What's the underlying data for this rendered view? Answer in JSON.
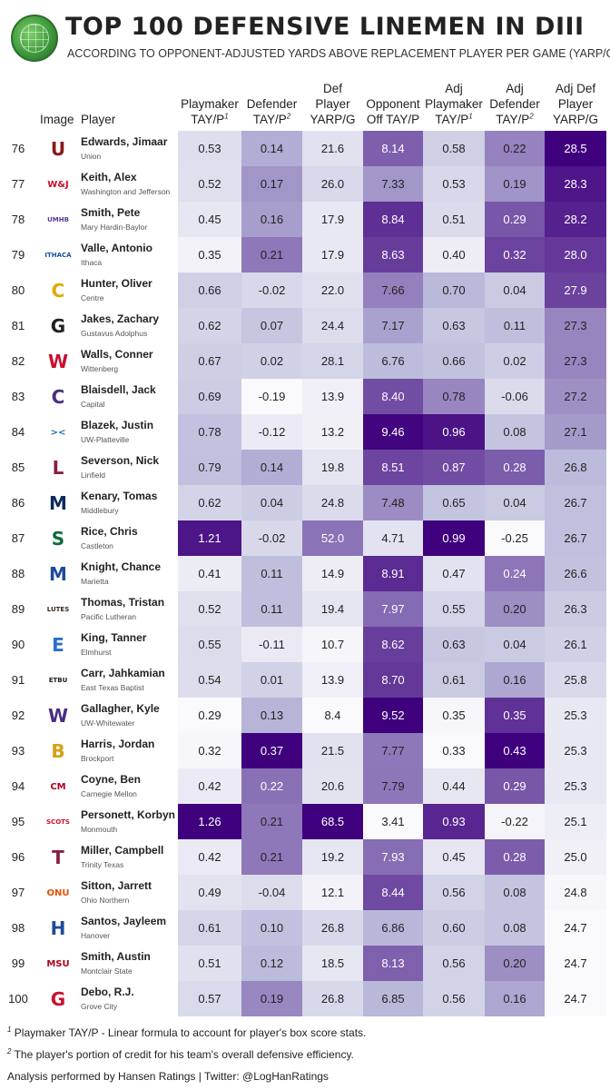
{
  "header": {
    "title": "TOP 100 DEFENSIVE LINEMEN IN DIII",
    "subtitle": "ACCORDING TO OPPONENT-ADJUSTED YARDS ABOVE REPLACEMENT PLAYER PER GAME (YARP/G)"
  },
  "columns": {
    "image": "Image",
    "player": "Player",
    "c1_l1": "Playmaker",
    "c1_l2": "TAY/P",
    "c1_sup": "1",
    "c2_l1": "Defender",
    "c2_l2": "TAY/P",
    "c2_sup": "2",
    "c3_l1": "Def",
    "c3_l2": "Player",
    "c3_l3": "YARP/G",
    "c4_l1": "Opponent",
    "c4_l2": "Off TAY/P",
    "c5_l1": "Adj",
    "c5_l2": "Playmaker",
    "c5_l3": "TAY/P",
    "c5_sup": "1",
    "c6_l1": "Adj",
    "c6_l2": "Defender",
    "c6_l3": "TAY/P",
    "c6_sup": "2",
    "c7_l1": "Adj Def",
    "c7_l2": "Player",
    "c7_l3": "YARP/G"
  },
  "rows": [
    {
      "rank": "76",
      "name": "Edwards, Jimaar",
      "team": "Union",
      "logo": "U",
      "logo_color": "#8a1a1a",
      "v": [
        "0.53",
        "0.14",
        "21.6",
        "8.14",
        "0.58",
        "0.22",
        "28.5"
      ]
    },
    {
      "rank": "77",
      "name": "Keith, Alex",
      "team": "Washington and Jefferson",
      "logo": "W&J",
      "logo_color": "#c8102e",
      "v": [
        "0.52",
        "0.17",
        "26.0",
        "7.33",
        "0.53",
        "0.19",
        "28.3"
      ]
    },
    {
      "rank": "78",
      "name": "Smith, Pete",
      "team": "Mary Hardin-Baylor",
      "logo": "UMHB",
      "logo_color": "#5b3a8e",
      "v": [
        "0.45",
        "0.16",
        "17.9",
        "8.84",
        "0.51",
        "0.29",
        "28.2"
      ]
    },
    {
      "rank": "79",
      "name": "Valle, Antonio",
      "team": "Ithaca",
      "logo": "ITHACA",
      "logo_color": "#1a4f9c",
      "v": [
        "0.35",
        "0.21",
        "17.9",
        "8.63",
        "0.40",
        "0.32",
        "28.0"
      ]
    },
    {
      "rank": "80",
      "name": "Hunter, Oliver",
      "team": "Centre",
      "logo": "C",
      "logo_color": "#e0a800",
      "v": [
        "0.66",
        "-0.02",
        "22.0",
        "7.66",
        "0.70",
        "0.04",
        "27.9"
      ]
    },
    {
      "rank": "81",
      "name": "Jakes, Zachary",
      "team": "Gustavus Adolphus",
      "logo": "G",
      "logo_color": "#222222",
      "v": [
        "0.62",
        "0.07",
        "24.4",
        "7.17",
        "0.63",
        "0.11",
        "27.3"
      ]
    },
    {
      "rank": "82",
      "name": "Walls, Conner",
      "team": "Wittenberg",
      "logo": "W",
      "logo_color": "#c8102e",
      "v": [
        "0.67",
        "0.02",
        "28.1",
        "6.76",
        "0.66",
        "0.02",
        "27.3"
      ]
    },
    {
      "rank": "83",
      "name": "Blaisdell, Jack",
      "team": "Capital",
      "logo": "C",
      "logo_color": "#4b2e83",
      "v": [
        "0.69",
        "-0.19",
        "13.9",
        "8.40",
        "0.78",
        "-0.06",
        "27.2"
      ]
    },
    {
      "rank": "84",
      "name": "Blazek, Justin",
      "team": "UW-Platteville",
      "logo": "><",
      "logo_color": "#1f6fb5",
      "v": [
        "0.78",
        "-0.12",
        "13.2",
        "9.46",
        "0.96",
        "0.08",
        "27.1"
      ]
    },
    {
      "rank": "85",
      "name": "Severson, Nick",
      "team": "Linfield",
      "logo": "L",
      "logo_color": "#8b1e3f",
      "v": [
        "0.79",
        "0.14",
        "19.8",
        "8.51",
        "0.87",
        "0.28",
        "26.8"
      ]
    },
    {
      "rank": "86",
      "name": "Kenary, Tomas",
      "team": "Middlebury",
      "logo": "M",
      "logo_color": "#0b2a5b",
      "v": [
        "0.62",
        "0.04",
        "24.8",
        "7.48",
        "0.65",
        "0.04",
        "26.7"
      ]
    },
    {
      "rank": "87",
      "name": "Rice, Chris",
      "team": "Castleton",
      "logo": "S",
      "logo_color": "#0f6b3a",
      "v": [
        "1.21",
        "-0.02",
        "52.0",
        "4.71",
        "0.99",
        "-0.25",
        "26.7"
      ]
    },
    {
      "rank": "88",
      "name": "Knight, Chance",
      "team": "Marietta",
      "logo": "M",
      "logo_color": "#1d4a9c",
      "v": [
        "0.41",
        "0.11",
        "14.9",
        "8.91",
        "0.47",
        "0.24",
        "26.6"
      ]
    },
    {
      "rank": "89",
      "name": "Thomas, Tristan",
      "team": "Pacific Lutheran",
      "logo": "LUTES",
      "logo_color": "#3c2a1e",
      "v": [
        "0.52",
        "0.11",
        "19.4",
        "7.97",
        "0.55",
        "0.20",
        "26.3"
      ]
    },
    {
      "rank": "90",
      "name": "King, Tanner",
      "team": "Elmhurst",
      "logo": "E",
      "logo_color": "#2a6fc9",
      "v": [
        "0.55",
        "-0.11",
        "10.7",
        "8.62",
        "0.63",
        "0.04",
        "26.1"
      ]
    },
    {
      "rank": "91",
      "name": "Carr, Jahkamian",
      "team": "East Texas Baptist",
      "logo": "ETBU",
      "logo_color": "#1a1a1a",
      "v": [
        "0.54",
        "0.01",
        "13.9",
        "8.70",
        "0.61",
        "0.16",
        "25.8"
      ]
    },
    {
      "rank": "92",
      "name": "Gallagher, Kyle",
      "team": "UW-Whitewater",
      "logo": "W",
      "logo_color": "#4b2e83",
      "v": [
        "0.29",
        "0.13",
        "8.4",
        "9.52",
        "0.35",
        "0.35",
        "25.3"
      ]
    },
    {
      "rank": "93",
      "name": "Harris, Jordan",
      "team": "Brockport",
      "logo": "B",
      "logo_color": "#d4a017",
      "v": [
        "0.32",
        "0.37",
        "21.5",
        "7.77",
        "0.33",
        "0.43",
        "25.3"
      ]
    },
    {
      "rank": "94",
      "name": "Coyne, Ben",
      "team": "Carnegie Mellon",
      "logo": "CM",
      "logo_color": "#b00020",
      "v": [
        "0.42",
        "0.22",
        "20.6",
        "7.79",
        "0.44",
        "0.29",
        "25.3"
      ]
    },
    {
      "rank": "95",
      "name": "Personett, Korbyn",
      "team": "Monmouth",
      "logo": "SCOTS",
      "logo_color": "#c8102e",
      "v": [
        "1.26",
        "0.21",
        "68.5",
        "3.41",
        "0.93",
        "-0.22",
        "25.1"
      ]
    },
    {
      "rank": "96",
      "name": "Miller, Campbell",
      "team": "Trinity Texas",
      "logo": "T",
      "logo_color": "#8b1e3f",
      "v": [
        "0.42",
        "0.21",
        "19.2",
        "7.93",
        "0.45",
        "0.28",
        "25.0"
      ]
    },
    {
      "rank": "97",
      "name": "Sitton, Jarrett",
      "team": "Ohio Northern",
      "logo": "ONU",
      "logo_color": "#e35205",
      "v": [
        "0.49",
        "-0.04",
        "12.1",
        "8.44",
        "0.56",
        "0.08",
        "24.8"
      ]
    },
    {
      "rank": "98",
      "name": "Santos, Jayleem",
      "team": "Hanover",
      "logo": "H",
      "logo_color": "#1d4a9c",
      "v": [
        "0.61",
        "0.10",
        "26.8",
        "6.86",
        "0.60",
        "0.08",
        "24.7"
      ]
    },
    {
      "rank": "99",
      "name": "Smith, Austin",
      "team": "Montclair State",
      "logo": "MSU",
      "logo_color": "#b00020",
      "v": [
        "0.51",
        "0.12",
        "18.5",
        "8.13",
        "0.56",
        "0.20",
        "24.7"
      ]
    },
    {
      "rank": "100",
      "name": "Debo, R.J.",
      "team": "Grove City",
      "logo": "G",
      "logo_color": "#c8102e",
      "v": [
        "0.57",
        "0.19",
        "26.8",
        "6.85",
        "0.56",
        "0.16",
        "24.7"
      ]
    }
  ],
  "footer": {
    "note1_sup": "1",
    "note1": " Playmaker TAY/P - Linear formula to account for player's box score stats.",
    "note2_sup": "2",
    "note2": " The player's portion of credit for his team's overall defensive efficiency.",
    "credit": "Analysis performed by Hansen Ratings | Twitter: @LogHanRatings"
  },
  "colors": {
    "scale_low": "#ffffff",
    "scale_high": "#3f007d",
    "text": "#222222"
  }
}
